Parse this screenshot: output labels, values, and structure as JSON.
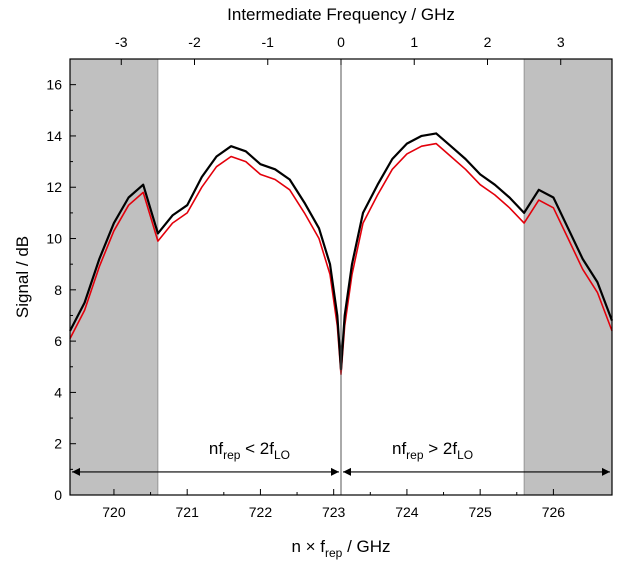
{
  "chart_data": {
    "type": "line",
    "xlabel": "n × f",
    "xlabel_sub": "rep",
    "xlabel_unit": " / GHz",
    "ylabel": "Signal / dB",
    "x2label": "Intermediate Frequency / GHz",
    "xlim": [
      719.4,
      726.8
    ],
    "ylim": [
      0,
      17
    ],
    "x2lim": [
      -3.7,
      3.7
    ],
    "x_ticks": [
      "720",
      "721",
      "722",
      "723",
      "724",
      "725",
      "726"
    ],
    "x_tick_values": [
      720,
      721,
      722,
      723,
      724,
      725,
      726
    ],
    "x2_ticks": [
      "-3",
      "-2",
      "-1",
      "0",
      "1",
      "2",
      "3"
    ],
    "x2_tick_values": [
      -3,
      -2,
      -1,
      0,
      1,
      2,
      3
    ],
    "y_ticks": [
      "0",
      "2",
      "4",
      "6",
      "8",
      "10",
      "12",
      "14",
      "16"
    ],
    "y_tick_values": [
      0,
      2,
      4,
      6,
      8,
      10,
      12,
      14,
      16
    ],
    "center_x": 723.1,
    "shaded_regions": [
      [
        719.4,
        720.6
      ],
      [
        725.6,
        726.8
      ]
    ],
    "annotations": {
      "left": {
        "base": "nf",
        "sub": "rep",
        "op": " < 2f",
        "sub2": "LO",
        "x": 721.85,
        "y": 1.6
      },
      "right": {
        "base": "nf",
        "sub": "rep",
        "op": " > 2f",
        "sub2": "LO",
        "x": 724.35,
        "y": 1.6
      },
      "arrow_y": 0.9
    },
    "series": [
      {
        "color": "#000000",
        "x": [
          719.4,
          719.6,
          719.8,
          720.0,
          720.2,
          720.4,
          720.6,
          720.8,
          721.0,
          721.2,
          721.4,
          721.6,
          721.8,
          722.0,
          722.2,
          722.4,
          722.6,
          722.8,
          722.95,
          723.05,
          723.1,
          723.15,
          723.25,
          723.4,
          723.6,
          723.8,
          724.0,
          724.2,
          724.4,
          724.6,
          724.8,
          725.0,
          725.2,
          725.4,
          725.6,
          725.8,
          726.0,
          726.2,
          726.4,
          726.6,
          726.8
        ],
        "y": [
          6.4,
          7.5,
          9.2,
          10.6,
          11.6,
          12.1,
          10.2,
          10.9,
          11.3,
          12.4,
          13.2,
          13.6,
          13.4,
          12.9,
          12.7,
          12.3,
          11.4,
          10.4,
          9.0,
          7.0,
          4.9,
          7.0,
          9.0,
          11.0,
          12.1,
          13.1,
          13.7,
          14.0,
          14.1,
          13.6,
          13.1,
          12.5,
          12.1,
          11.6,
          11.0,
          11.9,
          11.6,
          10.4,
          9.2,
          8.3,
          6.8
        ]
      },
      {
        "color": "#e3000b",
        "x": [
          719.4,
          719.6,
          719.8,
          720.0,
          720.2,
          720.4,
          720.6,
          720.8,
          721.0,
          721.2,
          721.4,
          721.6,
          721.8,
          722.0,
          722.2,
          722.4,
          722.6,
          722.8,
          722.95,
          723.05,
          723.1,
          723.15,
          723.25,
          723.4,
          723.6,
          723.8,
          724.0,
          724.2,
          724.4,
          724.6,
          724.8,
          725.0,
          725.2,
          725.4,
          725.6,
          725.8,
          726.0,
          726.2,
          726.4,
          726.6,
          726.8
        ],
        "y": [
          6.1,
          7.2,
          8.9,
          10.3,
          11.3,
          11.8,
          9.9,
          10.6,
          11.0,
          12.0,
          12.8,
          13.2,
          13.0,
          12.5,
          12.3,
          11.9,
          11.0,
          10.0,
          8.6,
          6.6,
          4.7,
          6.6,
          8.6,
          10.6,
          11.7,
          12.7,
          13.3,
          13.6,
          13.7,
          13.2,
          12.7,
          12.1,
          11.7,
          11.2,
          10.6,
          11.5,
          11.2,
          10.0,
          8.8,
          7.9,
          6.4
        ]
      }
    ]
  }
}
